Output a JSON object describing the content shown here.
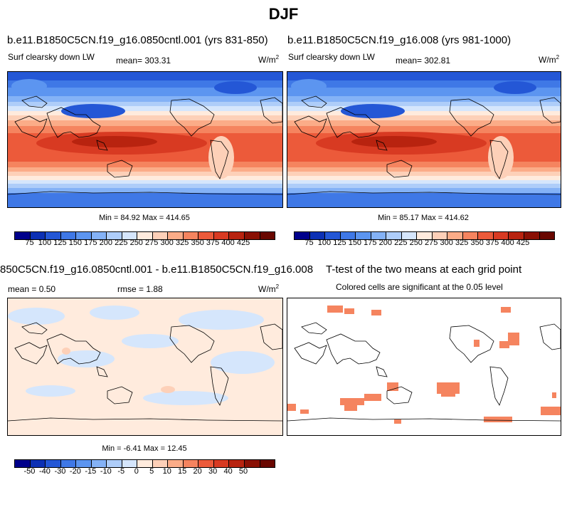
{
  "page": {
    "title": "DJF"
  },
  "panels": {
    "a": {
      "title": "b.e11.B1850C5CN.f19_g16.0850cntl.001 (yrs 831-850)",
      "left_label": "Surf clearsky down LW",
      "center_label": "mean= 303.31",
      "units": "W/m",
      "units_exp": "2",
      "minmax": "Min = 84.92 Max = 414.65"
    },
    "b": {
      "title": "b.e11.B1850C5CN.f19_g16.008 (yrs 981-1000)",
      "left_label": "Surf clearsky down LW",
      "center_label": "mean= 302.81",
      "units": "W/m",
      "units_exp": "2",
      "minmax": "Min = 85.17 Max = 414.62"
    },
    "c": {
      "title": "850C5CN.f19_g16.0850cntl.001 - b.e11.B1850C5CN.f19_g16.008",
      "left_label": "mean =  0.50",
      "center_label": "rmse =  1.88",
      "units": "W/m",
      "units_exp": "2",
      "minmax": "Min = -6.41 Max = 12.45"
    },
    "d": {
      "title": "T-test of the two means at each grid point",
      "subtitle": "Colored cells are significant at the 0.05 level"
    }
  },
  "colorbars": {
    "top": {
      "colors": [
        "#00008b",
        "#0c30b4",
        "#2457d6",
        "#3f78e6",
        "#5c95f0",
        "#84b2f6",
        "#aecdf9",
        "#d5e6fc",
        "#ffebdd",
        "#fdd0b8",
        "#fbac88",
        "#f5845f",
        "#ec5a3a",
        "#d83a22",
        "#b8230f",
        "#8a1004",
        "#690700"
      ],
      "labels": [
        "75",
        "100",
        "125",
        "150",
        "175",
        "200",
        "225",
        "250",
        "275",
        "300",
        "325",
        "350",
        "375",
        "400",
        "425"
      ]
    },
    "bottom": {
      "colors": [
        "#00008b",
        "#0c30b4",
        "#2457d6",
        "#3f78e6",
        "#5c95f0",
        "#84b2f6",
        "#aecdf9",
        "#d5e6fc",
        "#ffebdd",
        "#fdd0b8",
        "#fbac88",
        "#f5845f",
        "#ec5a3a",
        "#d83a22",
        "#b8230f",
        "#8a1004",
        "#690700"
      ],
      "labels": [
        "-50",
        "-40",
        "-30",
        "-20",
        "-15",
        "-10",
        "-5",
        "0",
        "5",
        "10",
        "15",
        "20",
        "30",
        "40",
        "50"
      ]
    }
  }
}
